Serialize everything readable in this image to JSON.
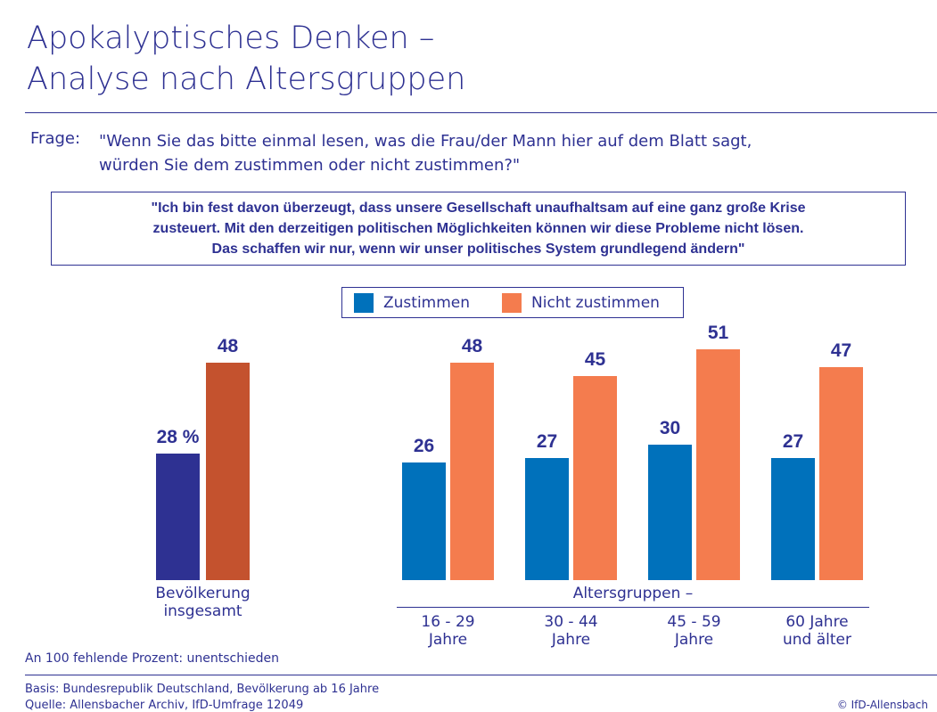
{
  "header": {
    "title": "Apokalyptisches Denken –\nAnalyse nach Altersgruppen",
    "question_label": "Frage:",
    "question": "\"Wenn Sie das bitte einmal lesen, was die Frau/der Mann hier auf dem Blatt sagt,\n würden Sie dem zustimmen oder nicht zustimmen?\""
  },
  "statement": "\"Ich bin fest davon überzeugt, dass unsere Gesellschaft unaufhaltsam auf eine ganz große Krise\nzusteuert. Mit den derzeitigen politischen Möglichkeiten können wir diese Probleme nicht lösen.\nDas schaffen wir nur, wenn wir unser politisches System grundlegend ändern\"",
  "chart_data": [
    {
      "type": "bar",
      "categories": [
        "Bevölkerung\ninsgesamt"
      ],
      "series": [
        {
          "color": "#2e3192",
          "values": [
            28
          ],
          "value_labels": [
            "28 %"
          ]
        },
        {
          "color": "#c4522e",
          "values": [
            48
          ]
        }
      ]
    },
    {
      "type": "bar",
      "xlabel": "Altersgruppen –",
      "categories": [
        "16 - 29\nJahre",
        "30 - 44\nJahre",
        "45 - 59\nJahre",
        "60 Jahre\nund älter"
      ],
      "series": [
        {
          "name": "Zustimmen",
          "color": "#0071bb",
          "values": [
            26,
            27,
            30,
            27
          ]
        },
        {
          "name": "Nicht zustimmen",
          "color": "#f47c4e",
          "values": [
            48,
            45,
            51,
            47
          ]
        }
      ]
    }
  ],
  "footnote": "An 100 fehlende Prozent: unentschieden",
  "basis": "Basis: Bundesrepublik Deutschland, Bevölkerung ab 16 Jahre",
  "source": "Quelle: Allensbacher Archiv, IfD-Umfrage 12049",
  "copyright": "© IfD-Allensbach"
}
